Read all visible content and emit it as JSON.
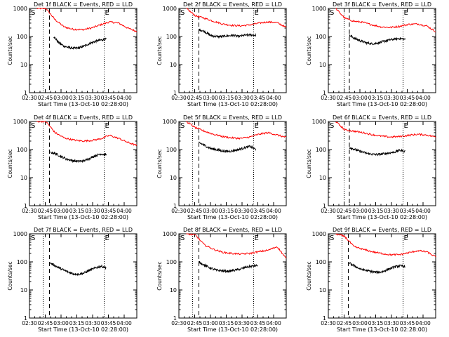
{
  "figure": {
    "common": {
      "xlabel": "Start Time (13-Oct-10 02:28:00)",
      "ylabel": "Counts/sec",
      "x_tick_labels": [
        "02:30",
        "02:45",
        "03:00",
        "03:15",
        "03:30",
        "03:45",
        "04:00"
      ],
      "x_ticks_min": [
        2,
        17,
        32,
        47,
        62,
        77,
        92
      ],
      "xlim_min": [
        2,
        104
      ],
      "y_tick_labels": [
        "1",
        "10",
        "100",
        "1000"
      ],
      "y_ticks": [
        1,
        10,
        100,
        1000
      ],
      "ylim": [
        1,
        1000
      ],
      "yscale": "log",
      "marker_S": "S",
      "marker_E": "E",
      "colors": {
        "events": "#000000",
        "lld": "#ff0000",
        "axes": "#000000"
      }
    }
  },
  "chart_data": [
    {
      "type": "line",
      "title": "Det 1f BLACK = Events, RED = LLD",
      "dotted_lines_min": [
        15,
        73
      ],
      "dashed_line_min": 21,
      "events": {
        "start": 25,
        "end": 75,
        "values": [
          100,
          60,
          45,
          40,
          38,
          40,
          48,
          58,
          68,
          75,
          80
        ]
      },
      "lld": {
        "start": 9,
        "end": 104,
        "values": [
          1000,
          1000,
          400,
          220,
          180,
          175,
          200,
          260,
          330,
          300,
          200,
          150
        ]
      },
      "series": [
        {
          "name": "Events",
          "color": "#000000"
        },
        {
          "name": "LLD",
          "color": "#ff0000"
        }
      ]
    },
    {
      "type": "line",
      "title": "Det 2f BLACK = Events, RED = LLD",
      "dotted_lines_min": [
        15,
        73
      ],
      "dashed_line_min": 21,
      "events": {
        "start": 21,
        "end": 75,
        "values": [
          180,
          150,
          110,
          100,
          100,
          105,
          110,
          100,
          110,
          115,
          110
        ]
      },
      "lld": {
        "start": 9,
        "end": 104,
        "values": [
          1000,
          550,
          450,
          350,
          280,
          250,
          240,
          260,
          300,
          330,
          310,
          210
        ]
      },
      "series": [
        {
          "name": "Events",
          "color": "#000000"
        },
        {
          "name": "LLD",
          "color": "#ff0000"
        }
      ]
    },
    {
      "type": "line",
      "title": "Det 3f BLACK = Events, RED = LLD",
      "dotted_lines_min": [
        17,
        73
      ],
      "dashed_line_min": 22,
      "events": {
        "start": 22,
        "end": 75,
        "values": [
          110,
          85,
          70,
          60,
          55,
          58,
          65,
          75,
          80,
          85,
          80
        ]
      },
      "lld": {
        "start": 9,
        "end": 104,
        "values": [
          1000,
          450,
          350,
          320,
          260,
          220,
          210,
          230,
          270,
          280,
          240,
          150
        ]
      },
      "series": [
        {
          "name": "Events",
          "color": "#000000"
        },
        {
          "name": "LLD",
          "color": "#ff0000"
        }
      ]
    },
    {
      "type": "line",
      "title": "Det 4f BLACK = Events, RED = LLD",
      "dotted_lines_min": [
        15,
        73
      ],
      "dashed_line_min": 21,
      "events": {
        "start": 22,
        "end": 75,
        "values": [
          80,
          70,
          55,
          45,
          40,
          38,
          40,
          48,
          60,
          70,
          65
        ]
      },
      "lld": {
        "start": 9,
        "end": 104,
        "values": [
          1000,
          1000,
          400,
          260,
          220,
          200,
          210,
          240,
          320,
          250,
          180,
          140
        ]
      },
      "series": [
        {
          "name": "Events",
          "color": "#000000"
        },
        {
          "name": "LLD",
          "color": "#ff0000"
        }
      ]
    },
    {
      "type": "line",
      "title": "Det 5f BLACK = Events, RED = LLD",
      "dotted_lines_min": [
        15,
        73
      ],
      "dashed_line_min": 21,
      "events": {
        "start": 21,
        "end": 75,
        "values": [
          180,
          140,
          110,
          100,
          90,
          85,
          90,
          100,
          115,
          130,
          100
        ]
      },
      "lld": {
        "start": 9,
        "end": 104,
        "values": [
          1000,
          600,
          450,
          350,
          290,
          260,
          250,
          280,
          350,
          400,
          330,
          270
        ]
      },
      "series": [
        {
          "name": "Events",
          "color": "#000000"
        },
        {
          "name": "LLD",
          "color": "#ff0000"
        }
      ]
    },
    {
      "type": "line",
      "title": "Det 6f BLACK = Events, RED = LLD",
      "dotted_lines_min": [
        17,
        73
      ],
      "dashed_line_min": 22,
      "events": {
        "start": 22,
        "end": 75,
        "values": [
          120,
          100,
          85,
          75,
          68,
          66,
          70,
          75,
          80,
          95,
          85
        ]
      },
      "lld": {
        "start": 9,
        "end": 104,
        "values": [
          1000,
          500,
          450,
          400,
          340,
          300,
          280,
          290,
          320,
          350,
          330,
          280
        ]
      },
      "series": [
        {
          "name": "Events",
          "color": "#000000"
        },
        {
          "name": "LLD",
          "color": "#ff0000"
        }
      ]
    },
    {
      "type": "line",
      "title": "Det 7f BLACK = Events, RED = LLD",
      "dotted_lines_min": [
        15,
        73
      ],
      "dashed_line_min": 21,
      "events": {
        "start": 22,
        "end": 75,
        "values": [
          90,
          70,
          55,
          45,
          38,
          36,
          40,
          50,
          60,
          70,
          62
        ]
      },
      "lld": null,
      "series": [
        {
          "name": "Events",
          "color": "#000000"
        }
      ]
    },
    {
      "type": "line",
      "title": "Det 8f BLACK = Events, RED = LLD",
      "dotted_lines_min": [
        15,
        73
      ],
      "dashed_line_min": 21,
      "events": {
        "start": 21,
        "end": 77,
        "values": [
          100,
          75,
          60,
          50,
          48,
          46,
          50,
          55,
          65,
          70,
          75
        ]
      },
      "lld": {
        "start": 9,
        "end": 104,
        "values": [
          1000,
          900,
          400,
          280,
          220,
          200,
          190,
          200,
          230,
          260,
          350,
          130
        ]
      },
      "series": [
        {
          "name": "Events",
          "color": "#000000"
        },
        {
          "name": "LLD",
          "color": "#ff0000"
        }
      ]
    },
    {
      "type": "line",
      "title": "Det 9f BLACK = Events, RED = LLD",
      "dotted_lines_min": [
        15,
        73
      ],
      "dashed_line_min": 21,
      "events": {
        "start": 22,
        "end": 75,
        "values": [
          90,
          70,
          55,
          50,
          45,
          42,
          45,
          55,
          65,
          72,
          70
        ]
      },
      "lld": {
        "start": 9,
        "end": 104,
        "values": [
          1000,
          800,
          350,
          280,
          230,
          200,
          180,
          180,
          210,
          250,
          230,
          150
        ]
      },
      "series": [
        {
          "name": "Events",
          "color": "#000000"
        },
        {
          "name": "LLD",
          "color": "#ff0000"
        }
      ]
    }
  ]
}
